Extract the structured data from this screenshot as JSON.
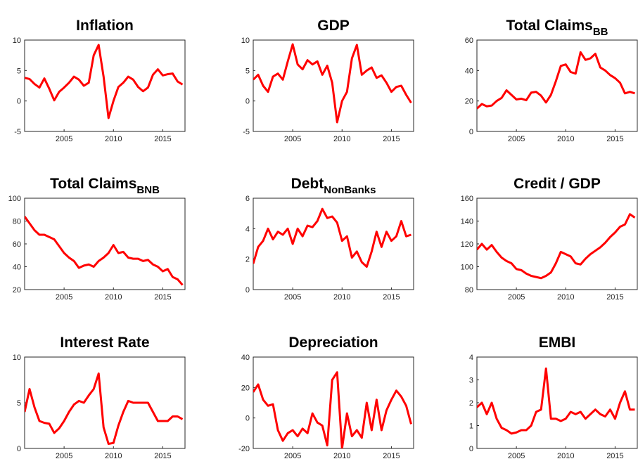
{
  "chart_data": [
    {
      "type": "line",
      "title": "Inflation",
      "x": [
        2001,
        2001.5,
        2002,
        2002.5,
        2003,
        2003.5,
        2004,
        2004.5,
        2005,
        2005.5,
        2006,
        2006.5,
        2007,
        2007.5,
        2008,
        2008.5,
        2009,
        2009.5,
        2010,
        2010.5,
        2011,
        2011.5,
        2012,
        2012.5,
        2013,
        2013.5,
        2014,
        2014.5,
        2015,
        2015.5,
        2016,
        2016.5,
        2017
      ],
      "values": [
        3.8,
        3.6,
        2.8,
        2.2,
        3.7,
        2.0,
        0.1,
        1.5,
        2.2,
        3.0,
        4.0,
        3.5,
        2.5,
        3.0,
        7.5,
        9.2,
        4.0,
        -2.8,
        0.0,
        2.3,
        3.0,
        4.0,
        3.5,
        2.3,
        1.6,
        2.2,
        4.3,
        5.2,
        4.2,
        4.4,
        4.5,
        3.2,
        2.7
      ],
      "color": "#ff0000",
      "xlim": [
        2001,
        2017.25
      ],
      "xticks": [
        2005,
        2010,
        2015
      ],
      "ylim": [
        -5,
        10
      ],
      "yticks": [
        -5,
        0,
        5,
        10
      ]
    },
    {
      "type": "line",
      "title": "GDP",
      "x": [
        2001,
        2001.5,
        2002,
        2002.5,
        2003,
        2003.5,
        2004,
        2004.5,
        2005,
        2005.5,
        2006,
        2006.5,
        2007,
        2007.5,
        2008,
        2008.5,
        2009,
        2009.5,
        2010,
        2010.5,
        2011,
        2011.5,
        2012,
        2012.5,
        2013,
        2013.5,
        2014,
        2014.5,
        2015,
        2015.5,
        2016,
        2016.5,
        2017
      ],
      "values": [
        3.5,
        4.3,
        2.5,
        1.5,
        4.0,
        4.5,
        3.5,
        6.5,
        9.3,
        6.0,
        5.2,
        6.7,
        6.0,
        6.5,
        4.3,
        5.8,
        3.0,
        -3.5,
        0.0,
        1.5,
        7.0,
        9.2,
        4.3,
        5.0,
        5.5,
        3.8,
        4.2,
        3.0,
        1.5,
        2.3,
        2.5,
        1.0,
        -0.3
      ],
      "color": "#ff0000",
      "xlim": [
        2001,
        2017.25
      ],
      "xticks": [
        2005,
        2010,
        2015
      ],
      "ylim": [
        -5,
        10
      ],
      "yticks": [
        -5,
        0,
        5,
        10
      ]
    },
    {
      "type": "line",
      "title": "Total Claims",
      "title_subscript": "BB",
      "x": [
        2001,
        2001.5,
        2002,
        2002.5,
        2003,
        2003.5,
        2004,
        2004.5,
        2005,
        2005.5,
        2006,
        2006.5,
        2007,
        2007.5,
        2008,
        2008.5,
        2009,
        2009.5,
        2010,
        2010.5,
        2011,
        2011.5,
        2012,
        2012.5,
        2013,
        2013.5,
        2014,
        2014.5,
        2015,
        2015.5,
        2016,
        2016.5,
        2017
      ],
      "values": [
        15,
        18,
        16.5,
        17,
        20,
        22,
        27,
        24,
        21,
        21.5,
        20.5,
        25.5,
        26,
        23.5,
        19,
        24,
        33,
        43,
        44,
        39,
        38,
        52,
        47,
        48,
        51,
        42,
        40,
        37,
        35,
        32,
        25,
        26,
        25
      ],
      "color": "#ff0000",
      "xlim": [
        2001,
        2017.25
      ],
      "xticks": [
        2005,
        2010,
        2015
      ],
      "ylim": [
        0,
        60
      ],
      "yticks": [
        0,
        20,
        40,
        60
      ]
    },
    {
      "type": "line",
      "title": "Total Claims",
      "title_subscript": "BNB",
      "x": [
        2001,
        2001.5,
        2002,
        2002.5,
        2003,
        2003.5,
        2004,
        2004.5,
        2005,
        2005.5,
        2006,
        2006.5,
        2007,
        2007.5,
        2008,
        2008.5,
        2009,
        2009.5,
        2010,
        2010.5,
        2011,
        2011.5,
        2012,
        2012.5,
        2013,
        2013.5,
        2014,
        2014.5,
        2015,
        2015.5,
        2016,
        2016.5,
        2017
      ],
      "values": [
        84,
        78,
        72,
        68,
        68,
        66,
        64,
        58,
        52,
        48,
        45,
        39,
        41,
        42,
        40,
        45,
        48,
        52,
        59,
        52,
        53,
        48,
        47,
        47,
        45,
        46,
        42,
        40,
        36,
        38,
        31,
        29,
        24
      ],
      "color": "#ff0000",
      "xlim": [
        2001,
        2017.25
      ],
      "xticks": [
        2005,
        2010,
        2015
      ],
      "ylim": [
        20,
        100
      ],
      "yticks": [
        20,
        40,
        60,
        80,
        100
      ]
    },
    {
      "type": "line",
      "title": "Debt",
      "title_subscript": "NonBanks",
      "x": [
        2001,
        2001.5,
        2002,
        2002.5,
        2003,
        2003.5,
        2004,
        2004.5,
        2005,
        2005.5,
        2006,
        2006.5,
        2007,
        2007.5,
        2008,
        2008.5,
        2009,
        2009.5,
        2010,
        2010.5,
        2011,
        2011.5,
        2012,
        2012.5,
        2013,
        2013.5,
        2014,
        2014.5,
        2015,
        2015.5,
        2016,
        2016.5,
        2017
      ],
      "values": [
        1.7,
        2.8,
        3.2,
        4.0,
        3.3,
        3.8,
        3.6,
        4.0,
        3.0,
        4.0,
        3.5,
        4.2,
        4.1,
        4.5,
        5.3,
        4.7,
        4.8,
        4.4,
        3.2,
        3.5,
        2.1,
        2.5,
        1.8,
        1.5,
        2.5,
        3.8,
        2.8,
        3.8,
        3.2,
        3.5,
        4.5,
        3.5,
        3.6
      ],
      "color": "#ff0000",
      "xlim": [
        2001,
        2017.25
      ],
      "xticks": [
        2005,
        2010,
        2015
      ],
      "ylim": [
        0,
        6
      ],
      "yticks": [
        0,
        2,
        4,
        6
      ]
    },
    {
      "type": "line",
      "title": "Credit / GDP",
      "x": [
        2001,
        2001.5,
        2002,
        2002.5,
        2003,
        2003.5,
        2004,
        2004.5,
        2005,
        2005.5,
        2006,
        2006.5,
        2007,
        2007.5,
        2008,
        2008.5,
        2009,
        2009.5,
        2010,
        2010.5,
        2011,
        2011.5,
        2012,
        2012.5,
        2013,
        2013.5,
        2014,
        2014.5,
        2015,
        2015.5,
        2016,
        2016.5,
        2017
      ],
      "values": [
        115,
        120,
        115,
        119,
        113,
        108,
        105,
        103,
        98,
        97,
        94,
        92,
        91,
        90,
        92,
        95,
        103,
        113,
        111,
        109,
        103,
        102,
        107,
        111,
        114,
        117,
        121,
        126,
        130,
        135,
        137,
        146,
        143
      ],
      "color": "#ff0000",
      "xlim": [
        2001,
        2017.25
      ],
      "xticks": [
        2005,
        2010,
        2015
      ],
      "ylim": [
        80,
        160
      ],
      "yticks": [
        80,
        100,
        120,
        140,
        160
      ]
    },
    {
      "type": "line",
      "title": "Interest Rate",
      "x": [
        2001,
        2001.5,
        2002,
        2002.5,
        2003,
        2003.5,
        2004,
        2004.5,
        2005,
        2005.5,
        2006,
        2006.5,
        2007,
        2007.5,
        2008,
        2008.5,
        2009,
        2009.5,
        2010,
        2010.5,
        2011,
        2011.5,
        2012,
        2012.5,
        2013,
        2013.5,
        2014,
        2014.5,
        2015,
        2015.5,
        2016,
        2016.5,
        2017
      ],
      "values": [
        4.0,
        6.5,
        4.5,
        3.0,
        2.8,
        2.7,
        1.7,
        2.2,
        3.0,
        4.0,
        4.8,
        5.2,
        5.0,
        5.8,
        6.5,
        8.2,
        2.3,
        0.5,
        0.6,
        2.5,
        4.0,
        5.2,
        5.0,
        5.0,
        5.0,
        5.0,
        4.0,
        3.0,
        3.0,
        3.0,
        3.5,
        3.5,
        3.2
      ],
      "color": "#ff0000",
      "xlim": [
        2001,
        2017.25
      ],
      "xticks": [
        2005,
        2010,
        2015
      ],
      "ylim": [
        0,
        10
      ],
      "yticks": [
        0,
        5,
        10
      ]
    },
    {
      "type": "line",
      "title": "Depreciation",
      "x": [
        2001,
        2001.5,
        2002,
        2002.5,
        2003,
        2003.5,
        2004,
        2004.5,
        2005,
        2005.5,
        2006,
        2006.5,
        2007,
        2007.5,
        2008,
        2008.5,
        2009,
        2009.5,
        2010,
        2010.5,
        2011,
        2011.5,
        2012,
        2012.5,
        2013,
        2013.5,
        2014,
        2014.5,
        2015,
        2015.5,
        2016,
        2016.5,
        2017
      ],
      "values": [
        17,
        22,
        12,
        8,
        9,
        -8,
        -15,
        -10,
        -8,
        -12,
        -7,
        -10,
        3,
        -3,
        -5,
        -18,
        25,
        30,
        -20,
        3,
        -12,
        -8,
        -13,
        10,
        -8,
        12,
        -8,
        5,
        12,
        18,
        14,
        8,
        -4
      ],
      "color": "#ff0000",
      "xlim": [
        2001,
        2017.25
      ],
      "xticks": [
        2005,
        2010,
        2015
      ],
      "ylim": [
        -20,
        40
      ],
      "yticks": [
        -20,
        0,
        20,
        40
      ]
    },
    {
      "type": "line",
      "title": "EMBI",
      "x": [
        2001,
        2001.5,
        2002,
        2002.5,
        2003,
        2003.5,
        2004,
        2004.5,
        2005,
        2005.5,
        2006,
        2006.5,
        2007,
        2007.5,
        2008,
        2008.5,
        2009,
        2009.5,
        2010,
        2010.5,
        2011,
        2011.5,
        2012,
        2012.5,
        2013,
        2013.5,
        2014,
        2014.5,
        2015,
        2015.5,
        2016,
        2016.5,
        2017
      ],
      "values": [
        1.8,
        2.0,
        1.5,
        2.0,
        1.3,
        0.9,
        0.8,
        0.65,
        0.7,
        0.8,
        0.8,
        1.0,
        1.6,
        1.7,
        3.5,
        1.3,
        1.3,
        1.2,
        1.3,
        1.6,
        1.5,
        1.6,
        1.3,
        1.5,
        1.7,
        1.5,
        1.4,
        1.7,
        1.3,
        2.0,
        2.5,
        1.7,
        1.7
      ],
      "color": "#ff0000",
      "xlim": [
        2001,
        2017.25
      ],
      "xticks": [
        2005,
        2010,
        2015
      ],
      "ylim": [
        0,
        4
      ],
      "yticks": [
        0,
        1,
        2,
        3,
        4
      ]
    }
  ]
}
